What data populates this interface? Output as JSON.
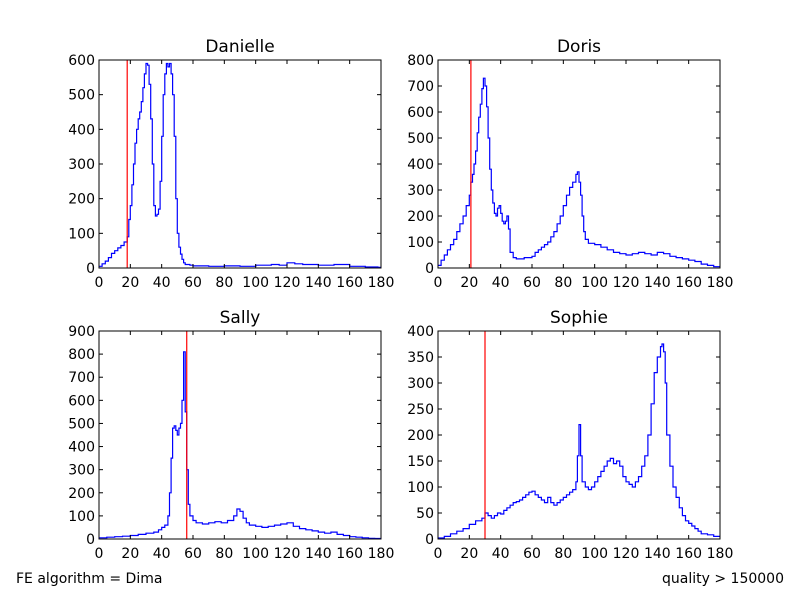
{
  "footer": {
    "left": "FE algorithm = Dima",
    "right": "quality > 150000"
  },
  "colors": {
    "histogram": "#0000ff",
    "threshold": "#ff0000",
    "axes": "#000000"
  },
  "chart_data": [
    {
      "type": "histogram-step",
      "title": "Danielle",
      "xlim": [
        0,
        180
      ],
      "ylim": [
        0,
        600
      ],
      "xticks": [
        0,
        20,
        40,
        60,
        80,
        100,
        120,
        140,
        160,
        180
      ],
      "yticks": [
        0,
        100,
        200,
        300,
        400,
        500,
        600
      ],
      "threshold_x": 18,
      "points": [
        [
          0,
          5
        ],
        [
          2,
          12
        ],
        [
          4,
          20
        ],
        [
          6,
          30
        ],
        [
          8,
          42
        ],
        [
          10,
          50
        ],
        [
          12,
          58
        ],
        [
          14,
          65
        ],
        [
          16,
          75
        ],
        [
          18,
          90
        ],
        [
          19,
          140
        ],
        [
          20,
          180
        ],
        [
          21,
          240
        ],
        [
          22,
          300
        ],
        [
          23,
          360
        ],
        [
          24,
          400
        ],
        [
          25,
          430
        ],
        [
          26,
          450
        ],
        [
          27,
          480
        ],
        [
          28,
          520
        ],
        [
          29,
          560
        ],
        [
          30,
          590
        ],
        [
          31,
          585
        ],
        [
          32,
          530
        ],
        [
          33,
          430
        ],
        [
          34,
          300
        ],
        [
          35,
          180
        ],
        [
          36,
          150
        ],
        [
          37,
          155
        ],
        [
          38,
          170
        ],
        [
          39,
          250
        ],
        [
          40,
          380
        ],
        [
          41,
          500
        ],
        [
          42,
          560
        ],
        [
          43,
          590
        ],
        [
          44,
          580
        ],
        [
          45,
          590
        ],
        [
          46,
          560
        ],
        [
          47,
          500
        ],
        [
          48,
          380
        ],
        [
          49,
          200
        ],
        [
          50,
          100
        ],
        [
          51,
          60
        ],
        [
          52,
          40
        ],
        [
          53,
          25
        ],
        [
          54,
          15
        ],
        [
          55,
          10
        ],
        [
          58,
          8
        ],
        [
          60,
          6
        ],
        [
          70,
          5
        ],
        [
          80,
          6
        ],
        [
          90,
          5
        ],
        [
          100,
          8
        ],
        [
          110,
          10
        ],
        [
          115,
          8
        ],
        [
          120,
          15
        ],
        [
          125,
          12
        ],
        [
          130,
          10
        ],
        [
          140,
          8
        ],
        [
          150,
          10
        ],
        [
          160,
          5
        ],
        [
          170,
          3
        ],
        [
          178,
          2
        ],
        [
          180,
          2
        ]
      ]
    },
    {
      "type": "histogram-step",
      "title": "Doris",
      "xlim": [
        0,
        180
      ],
      "ylim": [
        0,
        800
      ],
      "xticks": [
        0,
        20,
        40,
        60,
        80,
        100,
        120,
        140,
        160,
        180
      ],
      "yticks": [
        0,
        100,
        200,
        300,
        400,
        500,
        600,
        700,
        800
      ],
      "threshold_x": 21,
      "points": [
        [
          0,
          10
        ],
        [
          2,
          30
        ],
        [
          4,
          50
        ],
        [
          6,
          70
        ],
        [
          8,
          90
        ],
        [
          10,
          110
        ],
        [
          12,
          140
        ],
        [
          14,
          170
        ],
        [
          16,
          200
        ],
        [
          18,
          240
        ],
        [
          20,
          280
        ],
        [
          21,
          330
        ],
        [
          22,
          360
        ],
        [
          23,
          400
        ],
        [
          24,
          450
        ],
        [
          25,
          520
        ],
        [
          26,
          580
        ],
        [
          27,
          630
        ],
        [
          28,
          690
        ],
        [
          29,
          730
        ],
        [
          30,
          700
        ],
        [
          31,
          620
        ],
        [
          32,
          500
        ],
        [
          33,
          380
        ],
        [
          34,
          300
        ],
        [
          35,
          250
        ],
        [
          36,
          210
        ],
        [
          37,
          200
        ],
        [
          38,
          230
        ],
        [
          39,
          240
        ],
        [
          40,
          210
        ],
        [
          41,
          180
        ],
        [
          42,
          170
        ],
        [
          43,
          180
        ],
        [
          44,
          200
        ],
        [
          45,
          150
        ],
        [
          46,
          60
        ],
        [
          48,
          40
        ],
        [
          50,
          35
        ],
        [
          55,
          40
        ],
        [
          60,
          45
        ],
        [
          62,
          60
        ],
        [
          64,
          70
        ],
        [
          66,
          80
        ],
        [
          68,
          90
        ],
        [
          70,
          100
        ],
        [
          72,
          120
        ],
        [
          74,
          140
        ],
        [
          76,
          170
        ],
        [
          78,
          200
        ],
        [
          80,
          240
        ],
        [
          82,
          280
        ],
        [
          84,
          310
        ],
        [
          86,
          330
        ],
        [
          88,
          360
        ],
        [
          89,
          370
        ],
        [
          90,
          330
        ],
        [
          91,
          280
        ],
        [
          92,
          200
        ],
        [
          93,
          140
        ],
        [
          94,
          110
        ],
        [
          96,
          95
        ],
        [
          100,
          90
        ],
        [
          104,
          80
        ],
        [
          108,
          70
        ],
        [
          112,
          60
        ],
        [
          116,
          55
        ],
        [
          120,
          50
        ],
        [
          124,
          55
        ],
        [
          128,
          60
        ],
        [
          132,
          55
        ],
        [
          136,
          50
        ],
        [
          140,
          60
        ],
        [
          144,
          55
        ],
        [
          148,
          45
        ],
        [
          152,
          40
        ],
        [
          156,
          35
        ],
        [
          160,
          30
        ],
        [
          164,
          25
        ],
        [
          168,
          15
        ],
        [
          172,
          10
        ],
        [
          176,
          5
        ],
        [
          180,
          5
        ]
      ]
    },
    {
      "type": "histogram-step",
      "title": "Sally",
      "xlim": [
        0,
        180
      ],
      "ylim": [
        0,
        900
      ],
      "xticks": [
        0,
        20,
        40,
        60,
        80,
        100,
        120,
        140,
        160,
        180
      ],
      "yticks": [
        0,
        100,
        200,
        300,
        400,
        500,
        600,
        700,
        800,
        900
      ],
      "threshold_x": 56,
      "points": [
        [
          0,
          5
        ],
        [
          5,
          8
        ],
        [
          10,
          10
        ],
        [
          15,
          12
        ],
        [
          20,
          15
        ],
        [
          25,
          20
        ],
        [
          30,
          25
        ],
        [
          35,
          30
        ],
        [
          38,
          40
        ],
        [
          40,
          50
        ],
        [
          42,
          60
        ],
        [
          44,
          100
        ],
        [
          45,
          200
        ],
        [
          46,
          350
        ],
        [
          47,
          480
        ],
        [
          48,
          490
        ],
        [
          49,
          470
        ],
        [
          50,
          450
        ],
        [
          51,
          480
        ],
        [
          52,
          500
        ],
        [
          53,
          600
        ],
        [
          54,
          810
        ],
        [
          55,
          550
        ],
        [
          56,
          300
        ],
        [
          57,
          150
        ],
        [
          58,
          100
        ],
        [
          60,
          80
        ],
        [
          62,
          70
        ],
        [
          66,
          65
        ],
        [
          70,
          70
        ],
        [
          74,
          75
        ],
        [
          78,
          70
        ],
        [
          82,
          80
        ],
        [
          86,
          100
        ],
        [
          88,
          130
        ],
        [
          90,
          120
        ],
        [
          92,
          90
        ],
        [
          94,
          70
        ],
        [
          96,
          60
        ],
        [
          100,
          55
        ],
        [
          104,
          50
        ],
        [
          108,
          55
        ],
        [
          112,
          60
        ],
        [
          116,
          65
        ],
        [
          120,
          70
        ],
        [
          124,
          55
        ],
        [
          128,
          45
        ],
        [
          132,
          40
        ],
        [
          136,
          35
        ],
        [
          140,
          30
        ],
        [
          144,
          25
        ],
        [
          148,
          30
        ],
        [
          152,
          20
        ],
        [
          156,
          15
        ],
        [
          160,
          10
        ],
        [
          164,
          8
        ],
        [
          168,
          5
        ],
        [
          172,
          3
        ],
        [
          176,
          2
        ],
        [
          180,
          2
        ]
      ]
    },
    {
      "type": "histogram-step",
      "title": "Sophie",
      "xlim": [
        0,
        180
      ],
      "ylim": [
        0,
        400
      ],
      "xticks": [
        0,
        20,
        40,
        60,
        80,
        100,
        120,
        140,
        160,
        180
      ],
      "yticks": [
        0,
        50,
        100,
        150,
        200,
        250,
        300,
        350,
        400
      ],
      "threshold_x": 30,
      "points": [
        [
          0,
          2
        ],
        [
          4,
          5
        ],
        [
          8,
          10
        ],
        [
          12,
          15
        ],
        [
          16,
          20
        ],
        [
          20,
          28
        ],
        [
          24,
          35
        ],
        [
          28,
          40
        ],
        [
          30,
          50
        ],
        [
          32,
          45
        ],
        [
          34,
          40
        ],
        [
          36,
          45
        ],
        [
          38,
          50
        ],
        [
          40,
          48
        ],
        [
          42,
          55
        ],
        [
          44,
          60
        ],
        [
          46,
          65
        ],
        [
          48,
          70
        ],
        [
          50,
          72
        ],
        [
          52,
          75
        ],
        [
          54,
          80
        ],
        [
          56,
          85
        ],
        [
          58,
          90
        ],
        [
          60,
          92
        ],
        [
          62,
          85
        ],
        [
          64,
          80
        ],
        [
          66,
          75
        ],
        [
          68,
          70
        ],
        [
          70,
          80
        ],
        [
          72,
          70
        ],
        [
          74,
          65
        ],
        [
          76,
          70
        ],
        [
          78,
          75
        ],
        [
          80,
          80
        ],
        [
          82,
          85
        ],
        [
          84,
          90
        ],
        [
          86,
          95
        ],
        [
          88,
          110
        ],
        [
          89,
          160
        ],
        [
          90,
          220
        ],
        [
          91,
          160
        ],
        [
          92,
          110
        ],
        [
          94,
          100
        ],
        [
          96,
          95
        ],
        [
          98,
          100
        ],
        [
          100,
          110
        ],
        [
          102,
          120
        ],
        [
          104,
          130
        ],
        [
          106,
          140
        ],
        [
          108,
          150
        ],
        [
          110,
          155
        ],
        [
          112,
          145
        ],
        [
          114,
          150
        ],
        [
          116,
          140
        ],
        [
          118,
          120
        ],
        [
          120,
          110
        ],
        [
          122,
          105
        ],
        [
          124,
          100
        ],
        [
          126,
          110
        ],
        [
          128,
          120
        ],
        [
          130,
          140
        ],
        [
          132,
          160
        ],
        [
          134,
          200
        ],
        [
          136,
          260
        ],
        [
          138,
          320
        ],
        [
          140,
          350
        ],
        [
          142,
          370
        ],
        [
          143,
          375
        ],
        [
          144,
          360
        ],
        [
          145,
          300
        ],
        [
          146,
          200
        ],
        [
          148,
          140
        ],
        [
          150,
          100
        ],
        [
          152,
          80
        ],
        [
          154,
          60
        ],
        [
          156,
          45
        ],
        [
          158,
          35
        ],
        [
          160,
          30
        ],
        [
          162,
          25
        ],
        [
          164,
          20
        ],
        [
          166,
          15
        ],
        [
          168,
          10
        ],
        [
          172,
          8
        ],
        [
          176,
          5
        ],
        [
          180,
          5
        ]
      ]
    }
  ]
}
